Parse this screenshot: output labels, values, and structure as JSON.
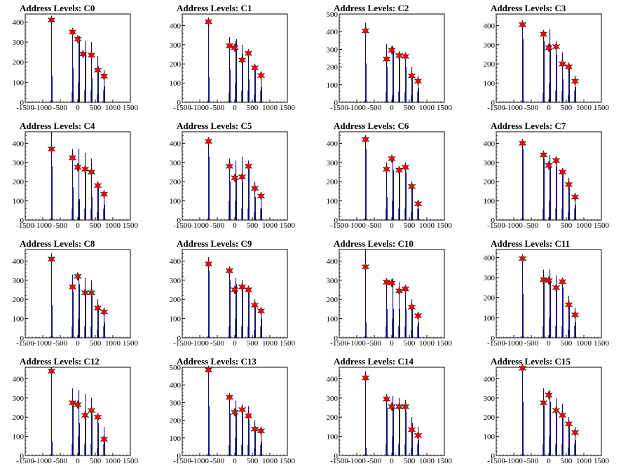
{
  "chart_data": [
    {
      "type": "bar",
      "title": "Address Levels: C0",
      "ylim": [
        0,
        440
      ],
      "yticks": [
        0,
        100,
        200,
        300,
        400
      ],
      "xlim": [
        -1500,
        1500
      ],
      "xticks": [
        -1500,
        -1000,
        -500,
        0,
        500,
        1000,
        1500
      ],
      "histogram_x": [
        -765,
        -750,
        -735,
        -165,
        -150,
        -135,
        15,
        30,
        45,
        195,
        210,
        225,
        375,
        390,
        405,
        555,
        570,
        585,
        735,
        750,
        765
      ],
      "histogram_y": [
        10,
        420,
        130,
        50,
        360,
        170,
        100,
        300,
        330,
        60,
        305,
        250,
        60,
        300,
        120,
        40,
        230,
        180,
        60,
        160,
        80
      ],
      "markers_x": [
        -750,
        -150,
        0,
        150,
        390,
        570,
        750
      ],
      "markers_y": [
        410,
        350,
        315,
        240,
        235,
        160,
        130
      ]
    },
    {
      "type": "bar",
      "title": "Address Levels: C1",
      "ylim": [
        0,
        460
      ],
      "yticks": [
        0,
        100,
        200,
        300,
        400
      ],
      "xlim": [
        -1500,
        1500
      ],
      "xticks": [
        -1500,
        -1000,
        -500,
        0,
        500,
        1000,
        1500
      ],
      "histogram_x": [
        -765,
        -750,
        -735,
        -165,
        -150,
        -135,
        15,
        30,
        45,
        195,
        210,
        225,
        375,
        390,
        405,
        555,
        570,
        585,
        735,
        750,
        765
      ],
      "histogram_y": [
        10,
        420,
        130,
        50,
        340,
        170,
        100,
        320,
        330,
        60,
        300,
        250,
        60,
        260,
        120,
        40,
        200,
        180,
        60,
        160,
        80
      ],
      "markers_x": [
        -750,
        -150,
        0,
        210,
        390,
        570,
        750
      ],
      "markers_y": [
        420,
        295,
        285,
        220,
        255,
        180,
        140
      ]
    },
    {
      "type": "bar",
      "title": "Address Levels: C2",
      "ylim": [
        0,
        500
      ],
      "yticks": [
        0,
        100,
        200,
        300,
        400,
        500
      ],
      "xlim": [
        -1500,
        1500
      ],
      "xticks": [
        -1500,
        -1000,
        -500,
        0,
        500,
        1000,
        1500
      ],
      "histogram_x": [
        -765,
        -750,
        -735,
        -165,
        -150,
        -135,
        15,
        30,
        45,
        195,
        210,
        225,
        375,
        390,
        405,
        555,
        570,
        585,
        735,
        750,
        765
      ],
      "histogram_y": [
        10,
        450,
        220,
        60,
        330,
        200,
        40,
        320,
        300,
        60,
        290,
        250,
        60,
        280,
        200,
        40,
        200,
        160,
        60,
        150,
        80
      ],
      "markers_x": [
        -750,
        -150,
        0,
        210,
        390,
        570,
        750
      ],
      "markers_y": [
        405,
        245,
        295,
        265,
        260,
        150,
        120
      ]
    },
    {
      "type": "bar",
      "title": "Address Levels: C3",
      "ylim": [
        0,
        460
      ],
      "yticks": [
        0,
        100,
        200,
        300,
        400
      ],
      "xlim": [
        -1500,
        1500
      ],
      "xticks": [
        -1500,
        -1000,
        -500,
        0,
        500,
        1000,
        1500
      ],
      "histogram_x": [
        -765,
        -750,
        -735,
        -165,
        -150,
        -135,
        15,
        30,
        45,
        195,
        210,
        225,
        375,
        390,
        405,
        555,
        570,
        585,
        735,
        750,
        765
      ],
      "histogram_y": [
        10,
        420,
        330,
        50,
        360,
        320,
        100,
        380,
        300,
        60,
        320,
        250,
        60,
        260,
        120,
        40,
        200,
        180,
        60,
        140,
        80
      ],
      "markers_x": [
        -750,
        -150,
        0,
        210,
        390,
        570,
        750
      ],
      "markers_y": [
        405,
        355,
        285,
        290,
        200,
        185,
        110
      ]
    },
    {
      "type": "bar",
      "title": "Address Levels: C4",
      "ylim": [
        0,
        460
      ],
      "yticks": [
        0,
        100,
        200,
        300,
        400
      ],
      "xlim": [
        -1500,
        1500
      ],
      "xticks": [
        -1500,
        -1000,
        -500,
        0,
        500,
        1000,
        1500
      ],
      "histogram_x": [
        -765,
        -750,
        -735,
        -165,
        -150,
        -135,
        15,
        30,
        45,
        195,
        210,
        225,
        375,
        390,
        405,
        555,
        570,
        585,
        735,
        750,
        765
      ],
      "histogram_y": [
        10,
        460,
        280,
        60,
        370,
        170,
        100,
        370,
        110,
        60,
        350,
        250,
        60,
        320,
        120,
        40,
        200,
        180,
        60,
        150,
        80
      ],
      "markers_x": [
        -750,
        -150,
        0,
        210,
        390,
        570,
        750
      ],
      "markers_y": [
        370,
        325,
        275,
        265,
        250,
        180,
        135
      ]
    },
    {
      "type": "bar",
      "title": "Address Levels: C5",
      "ylim": [
        0,
        460
      ],
      "yticks": [
        0,
        100,
        200,
        300,
        400
      ],
      "xlim": [
        -1500,
        1500
      ],
      "xticks": [
        -1500,
        -1000,
        -500,
        0,
        500,
        1000,
        1500
      ],
      "histogram_x": [
        -765,
        -750,
        -735,
        -165,
        -150,
        -135,
        15,
        30,
        45,
        195,
        210,
        225,
        375,
        390,
        405,
        555,
        570,
        585,
        735,
        750,
        765
      ],
      "histogram_y": [
        10,
        420,
        330,
        100,
        320,
        200,
        100,
        310,
        220,
        60,
        330,
        200,
        60,
        310,
        280,
        40,
        200,
        120,
        60,
        120,
        60
      ],
      "markers_x": [
        -750,
        -150,
        0,
        210,
        390,
        570,
        750
      ],
      "markers_y": [
        410,
        280,
        220,
        225,
        280,
        165,
        125
      ]
    },
    {
      "type": "bar",
      "title": "Address Levels: C6",
      "ylim": [
        0,
        460
      ],
      "yticks": [
        0,
        100,
        200,
        300,
        400
      ],
      "xlim": [
        -1500,
        1500
      ],
      "xticks": [
        -1500,
        -1000,
        -500,
        0,
        500,
        1000,
        1500
      ],
      "histogram_x": [
        -765,
        -750,
        -735,
        -165,
        -150,
        -135,
        15,
        30,
        45,
        195,
        210,
        225,
        375,
        390,
        405,
        555,
        570,
        585,
        735,
        750,
        765
      ],
      "histogram_y": [
        10,
        430,
        370,
        60,
        300,
        120,
        100,
        320,
        260,
        60,
        280,
        270,
        60,
        300,
        250,
        40,
        200,
        170,
        60,
        100,
        60
      ],
      "markers_x": [
        -750,
        -150,
        0,
        210,
        390,
        570,
        750
      ],
      "markers_y": [
        420,
        265,
        320,
        260,
        275,
        175,
        85
      ]
    },
    {
      "type": "bar",
      "title": "Address Levels: C7",
      "ylim": [
        0,
        460
      ],
      "yticks": [
        0,
        100,
        200,
        300,
        400
      ],
      "xlim": [
        -1500,
        1500
      ],
      "xticks": [
        -1500,
        -1000,
        -500,
        0,
        500,
        1000,
        1500
      ],
      "histogram_x": [
        -765,
        -750,
        -735,
        -165,
        -150,
        -135,
        15,
        30,
        45,
        195,
        210,
        225,
        375,
        390,
        405,
        555,
        570,
        585,
        735,
        750,
        765
      ],
      "histogram_y": [
        10,
        420,
        370,
        60,
        350,
        320,
        100,
        340,
        290,
        60,
        330,
        280,
        60,
        270,
        250,
        40,
        220,
        170,
        60,
        140,
        80
      ],
      "markers_x": [
        -750,
        -150,
        0,
        210,
        390,
        570,
        750
      ],
      "markers_y": [
        400,
        340,
        285,
        310,
        250,
        185,
        120
      ]
    },
    {
      "type": "bar",
      "title": "Address Levels: C8",
      "ylim": [
        0,
        460
      ],
      "yticks": [
        0,
        100,
        200,
        300,
        400
      ],
      "xlim": [
        -1500,
        1500
      ],
      "xticks": [
        -1500,
        -1000,
        -500,
        0,
        500,
        1000,
        1500
      ],
      "histogram_x": [
        -765,
        -750,
        -735,
        -165,
        -150,
        -135,
        15,
        30,
        45,
        195,
        210,
        225,
        375,
        390,
        405,
        555,
        570,
        585,
        735,
        750,
        765
      ],
      "histogram_y": [
        10,
        440,
        170,
        60,
        330,
        240,
        100,
        330,
        280,
        60,
        310,
        250,
        60,
        300,
        250,
        40,
        200,
        170,
        60,
        150,
        80
      ],
      "markers_x": [
        -750,
        -150,
        0,
        210,
        390,
        570,
        750
      ],
      "markers_y": [
        410,
        265,
        320,
        235,
        235,
        155,
        135
      ]
    },
    {
      "type": "bar",
      "title": "Address Levels: C9",
      "ylim": [
        0,
        460
      ],
      "yticks": [
        0,
        100,
        200,
        300,
        400
      ],
      "xlim": [
        -1500,
        1500
      ],
      "xticks": [
        -1500,
        -1000,
        -500,
        0,
        500,
        1000,
        1500
      ],
      "histogram_x": [
        -765,
        -750,
        -735,
        -165,
        -150,
        -135,
        15,
        30,
        45,
        195,
        210,
        225,
        375,
        390,
        405,
        555,
        570,
        585,
        735,
        750,
        765
      ],
      "histogram_y": [
        10,
        420,
        350,
        60,
        340,
        300,
        100,
        310,
        280,
        60,
        300,
        280,
        60,
        270,
        240,
        40,
        200,
        170,
        60,
        150,
        100
      ],
      "markers_x": [
        -750,
        -150,
        0,
        210,
        390,
        570,
        750
      ],
      "markers_y": [
        385,
        350,
        250,
        265,
        250,
        170,
        140
      ]
    },
    {
      "type": "bar",
      "title": "Address Levels: C10",
      "ylim": [
        0,
        460
      ],
      "yticks": [
        0,
        100,
        200,
        300,
        400
      ],
      "xlim": [
        -1500,
        1500
      ],
      "xticks": [
        -1500,
        -1000,
        -500,
        0,
        500,
        1000,
        1500
      ],
      "histogram_x": [
        -765,
        -750,
        -735,
        -165,
        -150,
        -135,
        15,
        30,
        45,
        195,
        210,
        225,
        375,
        390,
        405,
        555,
        570,
        585,
        735,
        750,
        765
      ],
      "histogram_y": [
        10,
        460,
        80,
        60,
        310,
        150,
        100,
        310,
        150,
        60,
        290,
        150,
        60,
        270,
        150,
        40,
        200,
        170,
        60,
        130,
        80
      ],
      "markers_x": [
        -750,
        -150,
        0,
        210,
        390,
        570,
        750
      ],
      "markers_y": [
        370,
        290,
        285,
        245,
        255,
        160,
        115
      ]
    },
    {
      "type": "bar",
      "title": "Address Levels: C11",
      "ylim": [
        0,
        440
      ],
      "yticks": [
        0,
        100,
        200,
        300,
        400
      ],
      "xlim": [
        -1500,
        1500
      ],
      "xticks": [
        -1500,
        -1000,
        -500,
        0,
        500,
        1000,
        1500
      ],
      "histogram_x": [
        -765,
        -750,
        -735,
        -165,
        -150,
        -135,
        15,
        30,
        45,
        195,
        210,
        225,
        375,
        390,
        405,
        555,
        570,
        585,
        735,
        750,
        765
      ],
      "histogram_y": [
        10,
        400,
        220,
        60,
        340,
        280,
        100,
        340,
        280,
        60,
        310,
        260,
        60,
        300,
        250,
        40,
        210,
        170,
        60,
        150,
        80
      ],
      "markers_x": [
        -750,
        -150,
        0,
        210,
        390,
        570,
        750
      ],
      "markers_y": [
        395,
        290,
        285,
        250,
        280,
        165,
        115
      ]
    },
    {
      "type": "bar",
      "title": "Address Levels: C12",
      "ylim": [
        0,
        460
      ],
      "yticks": [
        0,
        100,
        200,
        300,
        400
      ],
      "xlim": [
        -1500,
        1500
      ],
      "xticks": [
        -1500,
        -1000,
        -500,
        0,
        500,
        1000,
        1500
      ],
      "histogram_x": [
        -765,
        -750,
        -735,
        -165,
        -150,
        -135,
        15,
        30,
        45,
        195,
        210,
        225,
        375,
        390,
        405,
        555,
        570,
        585,
        735,
        750,
        765
      ],
      "histogram_y": [
        10,
        450,
        70,
        60,
        350,
        280,
        100,
        340,
        170,
        60,
        320,
        230,
        60,
        300,
        220,
        40,
        200,
        170,
        60,
        150,
        80
      ],
      "markers_x": [
        -750,
        -150,
        0,
        210,
        390,
        570,
        750
      ],
      "markers_y": [
        440,
        275,
        265,
        210,
        235,
        200,
        85
      ]
    },
    {
      "type": "bar",
      "title": "Address Levels: C13",
      "ylim": [
        0,
        500
      ],
      "yticks": [
        0,
        100,
        200,
        300,
        400,
        500
      ],
      "xlim": [
        -1500,
        1500
      ],
      "xticks": [
        -1500,
        -1000,
        -500,
        0,
        500,
        1000,
        1500
      ],
      "histogram_x": [
        -765,
        -750,
        -735,
        -165,
        -150,
        -135,
        15,
        30,
        45,
        195,
        210,
        225,
        375,
        390,
        405,
        555,
        570,
        585,
        735,
        750,
        765
      ],
      "histogram_y": [
        10,
        480,
        280,
        60,
        340,
        240,
        100,
        310,
        250,
        60,
        290,
        270,
        60,
        280,
        200,
        40,
        200,
        150,
        60,
        150,
        80
      ],
      "markers_x": [
        -750,
        -150,
        0,
        210,
        390,
        570,
        750
      ],
      "markers_y": [
        485,
        330,
        245,
        260,
        225,
        150,
        140
      ]
    },
    {
      "type": "bar",
      "title": "Address Levels: C14",
      "ylim": [
        0,
        460
      ],
      "yticks": [
        0,
        100,
        200,
        300,
        400
      ],
      "xlim": [
        -1500,
        1500
      ],
      "xticks": [
        -1500,
        -1000,
        -500,
        0,
        500,
        1000,
        1500
      ],
      "histogram_x": [
        -765,
        -750,
        -735,
        -165,
        -150,
        -135,
        15,
        30,
        45,
        195,
        210,
        225,
        375,
        390,
        405,
        555,
        570,
        585,
        735,
        750,
        765
      ],
      "histogram_y": [
        10,
        440,
        40,
        60,
        320,
        250,
        100,
        310,
        260,
        60,
        300,
        260,
        60,
        290,
        230,
        40,
        200,
        170,
        60,
        150,
        80
      ],
      "markers_x": [
        -750,
        -150,
        0,
        210,
        390,
        570,
        750
      ],
      "markers_y": [
        405,
        295,
        255,
        255,
        255,
        135,
        105
      ]
    },
    {
      "type": "bar",
      "title": "Address Levels: C15",
      "ylim": [
        0,
        460
      ],
      "yticks": [
        0,
        100,
        200,
        300,
        400
      ],
      "xlim": [
        -1500,
        1500
      ],
      "xticks": [
        -1500,
        -1000,
        -500,
        0,
        500,
        1000,
        1500
      ],
      "histogram_x": [
        -765,
        -750,
        -735,
        -165,
        -150,
        -135,
        15,
        30,
        45,
        195,
        210,
        225,
        375,
        390,
        405,
        555,
        570,
        585,
        735,
        750,
        765
      ],
      "histogram_y": [
        10,
        460,
        280,
        60,
        350,
        260,
        100,
        340,
        280,
        60,
        300,
        250,
        60,
        270,
        220,
        40,
        200,
        170,
        60,
        150,
        80
      ],
      "markers_x": [
        -750,
        -150,
        0,
        210,
        390,
        570,
        750
      ],
      "markers_y": [
        455,
        275,
        315,
        235,
        210,
        165,
        120
      ]
    }
  ],
  "colors": {
    "histogram_fill": "#0000ff",
    "histogram_outline": "#000000",
    "marker": "#ff0000",
    "marker_outline": "#000000"
  }
}
